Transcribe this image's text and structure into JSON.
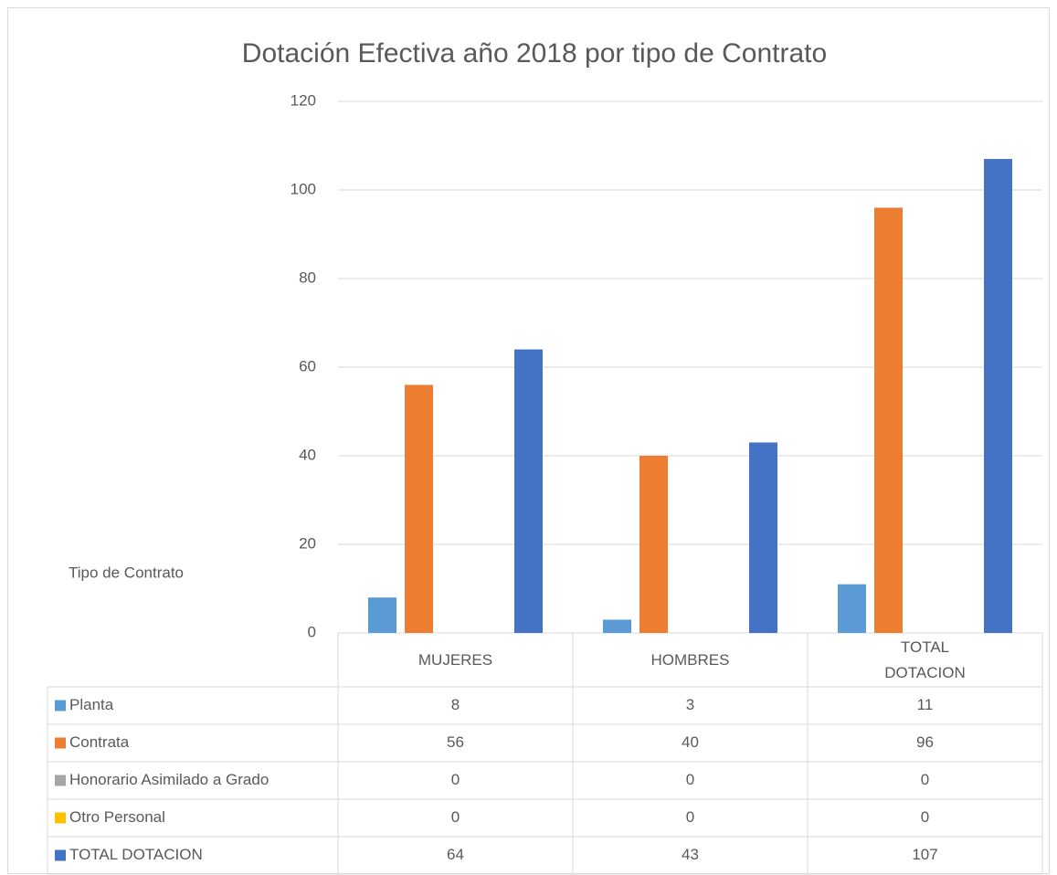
{
  "chart_data": {
    "type": "bar",
    "title": "Dotación Efectiva año 2018 por tipo de Contrato",
    "y_label": "Tipo de Contrato",
    "categories": [
      "MUJERES",
      "HOMBRES",
      "TOTAL DOTACION"
    ],
    "series": [
      {
        "name": "Planta",
        "color": "#5b9bd5",
        "values": [
          8,
          3,
          11
        ]
      },
      {
        "name": "Contrata",
        "color": "#ed7d31",
        "values": [
          56,
          40,
          96
        ]
      },
      {
        "name": "Honorario Asimilado a Grado",
        "color": "#a5a5a5",
        "values": [
          0,
          0,
          0
        ]
      },
      {
        "name": "Otro Personal",
        "color": "#ffc000",
        "values": [
          0,
          0,
          0
        ]
      },
      {
        "name": "TOTAL DOTACION",
        "color": "#4472c4",
        "values": [
          64,
          43,
          107
        ]
      }
    ],
    "ylim": [
      0,
      120
    ],
    "yticks": [
      0,
      20,
      40,
      60,
      80,
      100,
      120
    ],
    "grid": true,
    "data_table": true
  }
}
